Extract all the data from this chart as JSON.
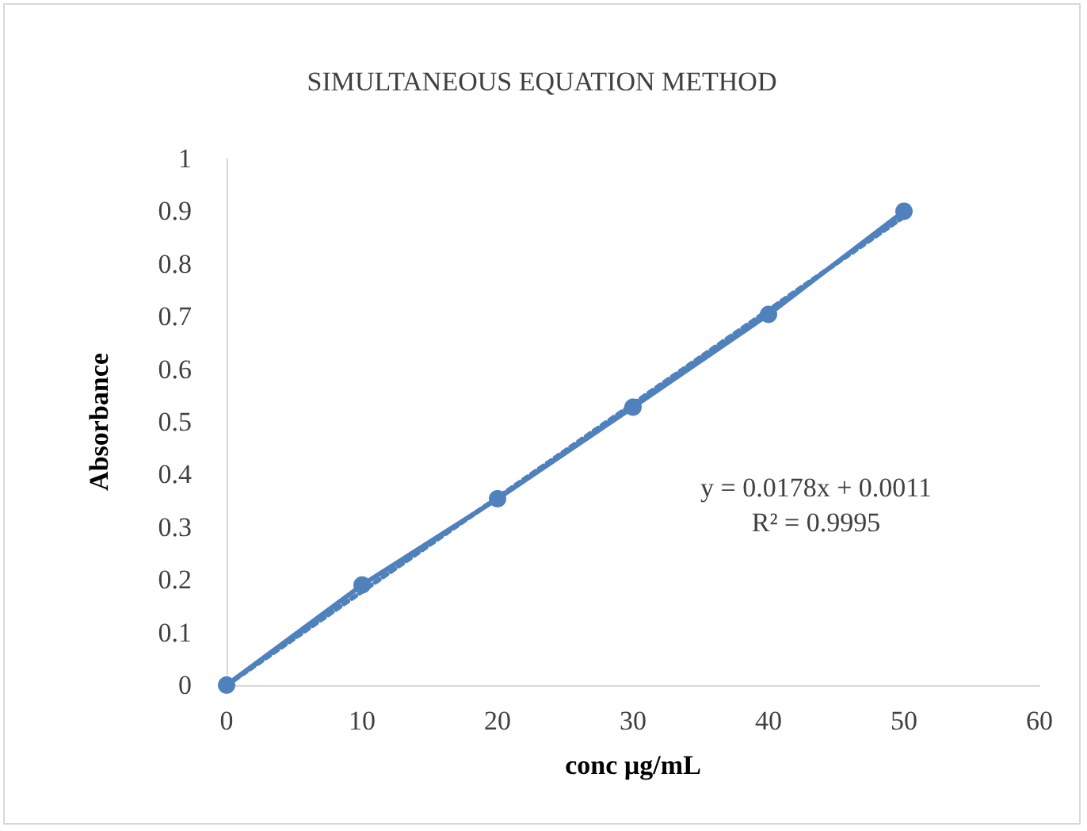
{
  "chart_data": {
    "type": "line",
    "title": "SIMULTANEOUS EQUATION METHOD",
    "xlabel": "conc µg/mL",
    "ylabel": "Absorbance",
    "x": [
      0,
      10,
      20,
      30,
      40,
      50
    ],
    "series": [
      {
        "color": "#4f81bd",
        "values": [
          0,
          0.19,
          0.354,
          0.528,
          0.704,
          0.9
        ],
        "marker": "circle",
        "line_style": "solid"
      },
      {
        "type": "line",
        "color": "#4f81bd",
        "x": [
          0,
          50
        ],
        "values": [
          0,
          0.89
        ],
        "marker": "none",
        "line_style": "dotted"
      }
    ],
    "xlim": [
      0,
      60
    ],
    "xticks": [
      0,
      10,
      20,
      30,
      40,
      50,
      60
    ],
    "ylim": [
      0,
      1
    ],
    "yticks": [
      0,
      0.1,
      0.2,
      0.3,
      0.4,
      0.5,
      0.6,
      0.7,
      0.8,
      0.9,
      1
    ],
    "annotations": [
      "y = 0.0178x + 0.0011",
      "R² = 0.9995"
    ],
    "grid": false
  }
}
